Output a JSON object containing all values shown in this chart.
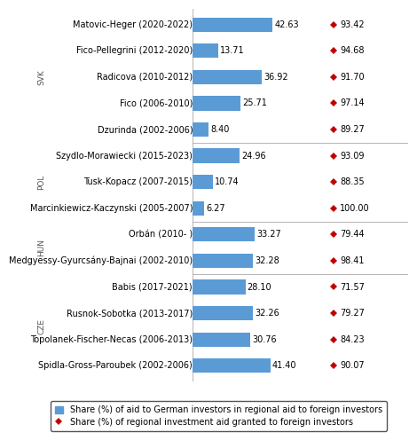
{
  "rows": [
    {
      "label": "Matovic-Heger (2020-2022)",
      "country": "SVK",
      "bar": 42.63,
      "diamond": 93.42
    },
    {
      "label": "Fico-Pellegrini (2012-2020)",
      "country": "SVK",
      "bar": 13.71,
      "diamond": 94.68
    },
    {
      "label": "Radicova (2010-2012)",
      "country": "SVK",
      "bar": 36.92,
      "diamond": 91.7
    },
    {
      "label": "Fico (2006-2010)",
      "country": "SVK",
      "bar": 25.71,
      "diamond": 97.14
    },
    {
      "label": "Dzurinda (2002-2006)",
      "country": "SVK",
      "bar": 8.4,
      "diamond": 89.27
    },
    {
      "label": "Szydlo-Morawiecki (2015-2023)",
      "country": "POL",
      "bar": 24.96,
      "diamond": 93.09
    },
    {
      "label": "Tusk-Kopacz (2007-2015)",
      "country": "POL",
      "bar": 10.74,
      "diamond": 88.35
    },
    {
      "label": "Marcinkiewicz-Kaczynski (2005-2007)",
      "country": "POL",
      "bar": 6.27,
      "diamond": 100.0
    },
    {
      "label": "Orbán (2010- )",
      "country": "HUN",
      "bar": 33.27,
      "diamond": 79.44
    },
    {
      "label": "Medgyessy-Gyurcsány-Bajnai (2002-2010)",
      "country": "HUN",
      "bar": 32.28,
      "diamond": 98.41
    },
    {
      "label": "Babis (2017-2021)",
      "country": "CZE",
      "bar": 28.1,
      "diamond": 71.57
    },
    {
      "label": "Rusnok-Sobotka (2013-2017)",
      "country": "CZE",
      "bar": 32.26,
      "diamond": 79.27
    },
    {
      "label": "Topolanek-Fischer-Necas (2006-2013)",
      "country": "CZE",
      "bar": 30.76,
      "diamond": 84.23
    },
    {
      "label": "Spidla-Gross-Paroubek (2002-2006)",
      "country": "CZE",
      "bar": 41.4,
      "diamond": 90.07
    }
  ],
  "bar_color": "#5B9BD5",
  "diamond_color": "#C00000",
  "background_color": "#FFFFFF",
  "bar_fontsize": 7.0,
  "label_fontsize": 7.0,
  "country_fontsize": 6.5,
  "legend_fontsize": 7.0,
  "legend_bar_label": "Share (%) of aid to German investors in regional aid to foreign investors",
  "legend_diamond_label": "Share (%) of regional investment aid granted to foreign investors",
  "separators": [
    8.5,
    5.5,
    3.5
  ],
  "country_groups": {
    "SVK": [
      0,
      1,
      2,
      3,
      4
    ],
    "POL": [
      5,
      6,
      7
    ],
    "HUN": [
      8,
      9
    ],
    "CZE": [
      10,
      11,
      12,
      13
    ]
  }
}
